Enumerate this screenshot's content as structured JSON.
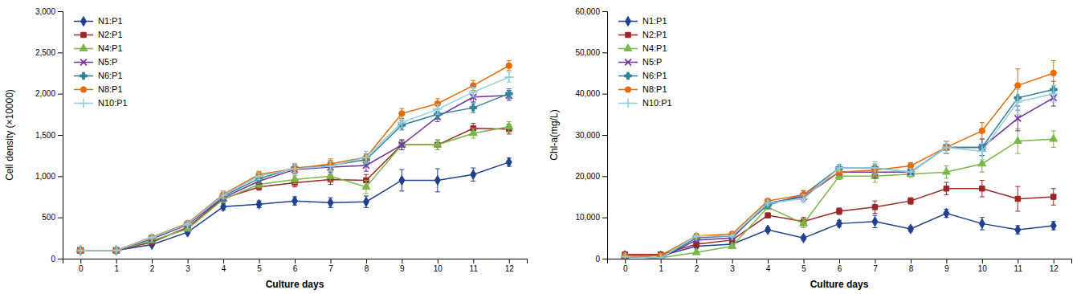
{
  "chart_data": [
    {
      "type": "line",
      "xlabel": "Culture days",
      "ylabel": "Cell density (×10000)",
      "x": [
        0,
        1,
        2,
        3,
        4,
        5,
        6,
        7,
        8,
        9,
        10,
        11,
        12
      ],
      "xlim": [
        -0.5,
        12.5
      ],
      "xticks": [
        0,
        1,
        2,
        3,
        4,
        5,
        6,
        7,
        8,
        9,
        10,
        11,
        12
      ],
      "ylim": [
        0,
        3000
      ],
      "yticks": [
        0,
        500,
        {
          "value": 1000,
          "label": "1,000"
        },
        {
          "value": 1500,
          "label": "1,500"
        },
        {
          "value": 2000,
          "label": "2,000"
        },
        {
          "value": 2500,
          "label": "2,500"
        },
        {
          "value": 3000,
          "label": "3,000"
        }
      ],
      "grid": false,
      "legend": "upper left",
      "series": [
        {
          "name": "N1:P1",
          "color": "#1F3F8F",
          "marker": "diamond",
          "values": [
            100,
            100,
            170,
            320,
            630,
            660,
            700,
            680,
            690,
            950,
            950,
            1020,
            1170
          ],
          "errors": [
            5,
            5,
            10,
            20,
            40,
            40,
            50,
            60,
            70,
            130,
            140,
            80,
            50
          ]
        },
        {
          "name": "N2:P1",
          "color": "#9B2626",
          "marker": "square",
          "values": [
            100,
            100,
            200,
            380,
            730,
            870,
            920,
            960,
            950,
            1380,
            1380,
            1580,
            1570
          ],
          "errors": [
            5,
            5,
            10,
            20,
            40,
            40,
            50,
            60,
            70,
            60,
            60,
            60,
            60
          ]
        },
        {
          "name": "N4:P1",
          "color": "#7AB648",
          "marker": "triangle-up",
          "values": [
            100,
            100,
            220,
            360,
            720,
            900,
            960,
            1000,
            870,
            1380,
            1380,
            1520,
            1600
          ],
          "errors": [
            5,
            5,
            10,
            20,
            40,
            40,
            50,
            60,
            80,
            60,
            60,
            60,
            60
          ]
        },
        {
          "name": "N5:P",
          "color": "#7030A0",
          "marker": "x",
          "values": [
            100,
            100,
            240,
            410,
            740,
            940,
            1080,
            1110,
            1130,
            1380,
            1720,
            1960,
            1980
          ],
          "errors": [
            5,
            5,
            10,
            20,
            40,
            40,
            50,
            60,
            70,
            60,
            60,
            60,
            60
          ]
        },
        {
          "name": "N6:P1",
          "color": "#31849B",
          "marker": "plus-filled",
          "values": [
            100,
            100,
            250,
            420,
            760,
            970,
            1100,
            1130,
            1200,
            1620,
            1750,
            1830,
            2000
          ],
          "errors": [
            5,
            5,
            10,
            20,
            40,
            40,
            50,
            60,
            70,
            60,
            60,
            60,
            60
          ]
        },
        {
          "name": "N8:P1",
          "color": "#E46C0A",
          "marker": "circle",
          "values": [
            100,
            100,
            260,
            430,
            780,
            1020,
            1090,
            1150,
            1230,
            1760,
            1880,
            2100,
            2340
          ],
          "errors": [
            5,
            5,
            10,
            20,
            40,
            40,
            50,
            60,
            70,
            60,
            60,
            60,
            60
          ]
        },
        {
          "name": "N10:P1",
          "color": "#92CDDC",
          "marker": "plus",
          "values": [
            100,
            100,
            255,
            420,
            770,
            1000,
            1090,
            1120,
            1230,
            1650,
            1810,
            2020,
            2200
          ],
          "errors": [
            5,
            5,
            10,
            20,
            40,
            40,
            50,
            60,
            70,
            60,
            60,
            60,
            60
          ]
        }
      ]
    },
    {
      "type": "line",
      "xlabel": "Culture days",
      "ylabel": "Chl-a(mg/L)",
      "x": [
        0,
        1,
        2,
        3,
        4,
        5,
        6,
        7,
        8,
        9,
        10,
        11,
        12
      ],
      "xlim": [
        -0.5,
        12.5
      ],
      "xticks": [
        0,
        1,
        2,
        3,
        4,
        5,
        6,
        7,
        8,
        9,
        10,
        11,
        12
      ],
      "ylim": [
        0,
        60000
      ],
      "yticks": [
        0,
        {
          "value": 10000,
          "label": "10,000"
        },
        {
          "value": 20000,
          "label": "20,000"
        },
        {
          "value": 30000,
          "label": "30,000"
        },
        {
          "value": 40000,
          "label": "40,000"
        },
        {
          "value": 50000,
          "label": "50,000"
        },
        {
          "value": 60000,
          "label": "60,000"
        }
      ],
      "grid": false,
      "legend": "upper left",
      "series": [
        {
          "name": "N1:P1",
          "color": "#1F3F8F",
          "marker": "diamond",
          "values": [
            800,
            700,
            3000,
            3500,
            7000,
            5000,
            8500,
            9000,
            7200,
            11000,
            8500,
            7000,
            8000
          ],
          "errors": [
            100,
            100,
            200,
            300,
            500,
            500,
            800,
            1500,
            600,
            1000,
            1500,
            1000,
            1000
          ]
        },
        {
          "name": "N2:P1",
          "color": "#9B2626",
          "marker": "square",
          "values": [
            1000,
            1000,
            3500,
            4500,
            10500,
            9000,
            11500,
            12500,
            14000,
            17000,
            17000,
            14500,
            15000
          ],
          "errors": [
            100,
            100,
            200,
            300,
            500,
            1000,
            800,
            1500,
            800,
            1500,
            2000,
            3000,
            2000
          ]
        },
        {
          "name": "N4:P1",
          "color": "#7AB648",
          "marker": "triangle-up",
          "values": [
            500,
            200,
            1500,
            3000,
            12500,
            8500,
            20000,
            20000,
            20500,
            21000,
            23000,
            28500,
            29000
          ],
          "errors": [
            100,
            100,
            200,
            300,
            500,
            1000,
            800,
            1500,
            800,
            1500,
            2000,
            3000,
            2000
          ]
        },
        {
          "name": "N5:P",
          "color": "#7030A0",
          "marker": "x",
          "values": [
            500,
            200,
            4500,
            5000,
            13500,
            15000,
            21000,
            21000,
            21000,
            27000,
            27000,
            34000,
            39000
          ],
          "errors": [
            100,
            100,
            200,
            300,
            500,
            1000,
            800,
            1500,
            800,
            1500,
            2000,
            3000,
            2000
          ]
        },
        {
          "name": "N6:P1",
          "color": "#31849B",
          "marker": "plus-filled",
          "values": [
            500,
            200,
            5000,
            5500,
            13000,
            15500,
            22000,
            22000,
            21000,
            27000,
            27000,
            39000,
            41000
          ],
          "errors": [
            100,
            100,
            200,
            300,
            500,
            1000,
            800,
            1500,
            800,
            1500,
            2000,
            3000,
            2000
          ]
        },
        {
          "name": "N8:P1",
          "color": "#E46C0A",
          "marker": "circle",
          "values": [
            800,
            800,
            5500,
            6000,
            14000,
            15500,
            21000,
            21500,
            22500,
            27000,
            31000,
            42000,
            45000
          ],
          "errors": [
            100,
            100,
            200,
            300,
            500,
            1000,
            800,
            1500,
            800,
            1500,
            2000,
            4000,
            3000
          ]
        },
        {
          "name": "N10:P1",
          "color": "#92CDDC",
          "marker": "plus",
          "values": [
            500,
            200,
            5500,
            5500,
            13500,
            14500,
            22000,
            22000,
            21000,
            27000,
            26000,
            38000,
            40000
          ],
          "errors": [
            100,
            100,
            200,
            300,
            500,
            1000,
            800,
            1500,
            800,
            1500,
            2000,
            3000,
            2000
          ]
        }
      ]
    }
  ]
}
